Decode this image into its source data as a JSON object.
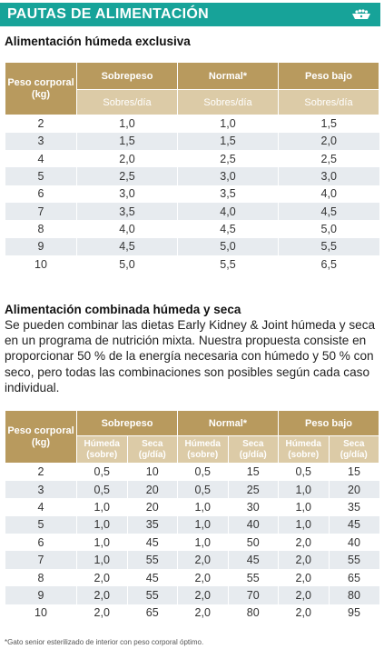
{
  "banner": {
    "title": "PAUTAS DE ALIMENTACIÓN",
    "icon": "cat-food-bowl-icon",
    "color": "#17a399"
  },
  "section1": {
    "title": "Alimentación húmeda exclusiva",
    "table": {
      "col_peso": "Peso corporal (kg)",
      "groups": [
        "Sobrepeso",
        "Normal*",
        "Peso bajo"
      ],
      "sub": [
        "Sobres/día",
        "Sobres/día",
        "Sobres/día"
      ],
      "rows": [
        [
          "2",
          "1,0",
          "1,0",
          "1,5"
        ],
        [
          "3",
          "1,5",
          "1,5",
          "2,0"
        ],
        [
          "4",
          "2,0",
          "2,5",
          "2,5"
        ],
        [
          "5",
          "2,5",
          "3,0",
          "3,0"
        ],
        [
          "6",
          "3,0",
          "3,5",
          "4,0"
        ],
        [
          "7",
          "3,5",
          "4,0",
          "4,5"
        ],
        [
          "8",
          "4,0",
          "4,5",
          "5,0"
        ],
        [
          "9",
          "4,5",
          "5,0",
          "5,5"
        ],
        [
          "10",
          "5,0",
          "5,5",
          "6,5"
        ]
      ]
    }
  },
  "section2": {
    "title": "Alimentación combinada húmeda y seca",
    "paragraph": "Se pueden combinar las dietas Early Kidney & Joint húmeda y seca en un programa de nutrición mixta. Nuestra propuesta consiste en proporcionar 50 % de la energía necesaria con húmedo y 50 % con seco, pero todas las combinaciones son posibles según cada caso individual.",
    "table": {
      "col_peso": "Peso corporal (kg)",
      "groups": [
        "Sobrepeso",
        "Normal*",
        "Peso bajo"
      ],
      "sub": [
        "Húmeda (sobre)",
        "Seca (g/día)",
        "Húmeda (sobre)",
        "Seca (g/día)",
        "Húmeda (sobre)",
        "Seca (g/día)"
      ],
      "rows": [
        [
          "2",
          "0,5",
          "10",
          "0,5",
          "15",
          "0,5",
          "15"
        ],
        [
          "3",
          "0,5",
          "20",
          "0,5",
          "25",
          "1,0",
          "20"
        ],
        [
          "4",
          "1,0",
          "20",
          "1,0",
          "30",
          "1,0",
          "35"
        ],
        [
          "5",
          "1,0",
          "35",
          "1,0",
          "40",
          "1,0",
          "45"
        ],
        [
          "6",
          "1,0",
          "45",
          "1,0",
          "50",
          "2,0",
          "40"
        ],
        [
          "7",
          "1,0",
          "55",
          "2,0",
          "45",
          "2,0",
          "55"
        ],
        [
          "8",
          "2,0",
          "45",
          "2,0",
          "55",
          "2,0",
          "65"
        ],
        [
          "9",
          "2,0",
          "55",
          "2,0",
          "70",
          "2,0",
          "80"
        ],
        [
          "10",
          "2,0",
          "65",
          "2,0",
          "80",
          "2,0",
          "95"
        ]
      ]
    }
  },
  "footnote": "*Gato senior esterilizado de interior con peso corporal óptimo.",
  "colors": {
    "header_gold": "#b89a5e",
    "header_light": "#dccba7",
    "row_alt": "#e7ebef"
  }
}
